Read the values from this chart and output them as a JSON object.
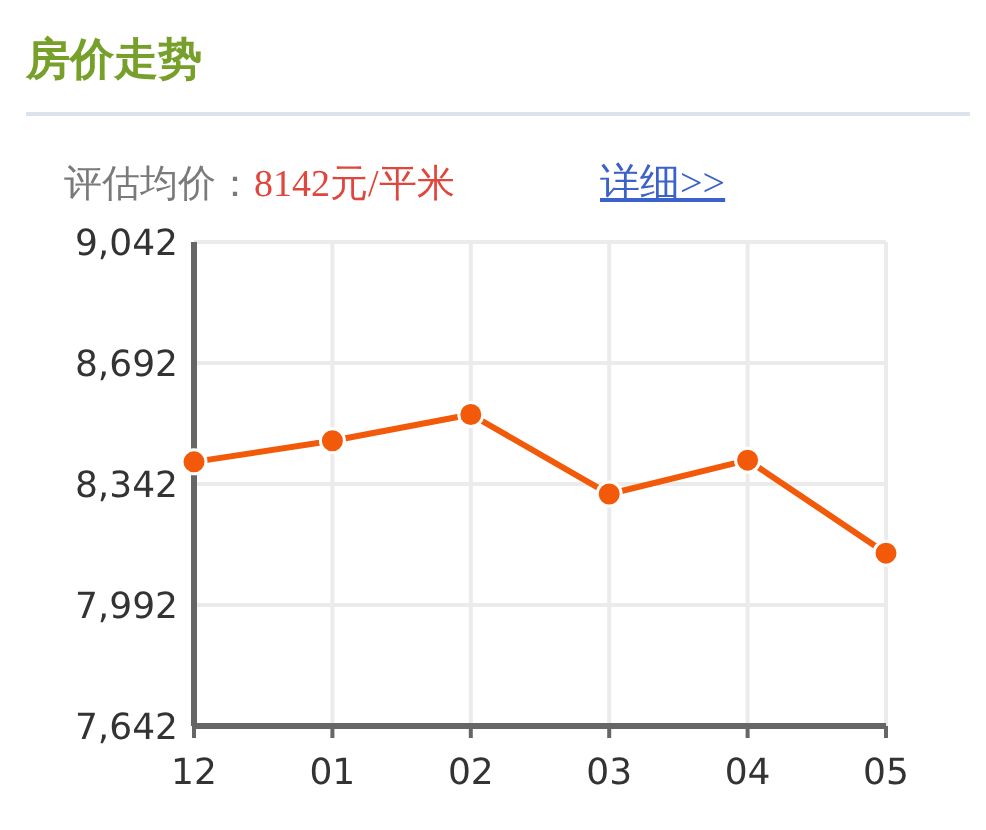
{
  "chart_data": {
    "type": "line",
    "title": "房价走势",
    "subtitle": "评估均价：8142元/平米",
    "annotations": [
      "详细>>"
    ],
    "categories": [
      "12",
      "01",
      "02",
      "03",
      "04",
      "05"
    ],
    "series": [
      {
        "color": "#f25a0a",
        "values": [
          8406,
          8467,
          8543,
          8313,
          8411,
          8142
        ]
      }
    ],
    "ylim": [
      7642,
      9042
    ],
    "yticks": [
      {
        "value": 7642,
        "label": "7,642"
      },
      {
        "value": 7992,
        "label": "7,992"
      },
      {
        "value": 8342,
        "label": "8,342"
      },
      {
        "value": 8692,
        "label": "8,692"
      },
      {
        "value": 9042,
        "label": "9,042"
      }
    ],
    "grid": true,
    "marker": "circle",
    "line_style": "solid"
  }
}
